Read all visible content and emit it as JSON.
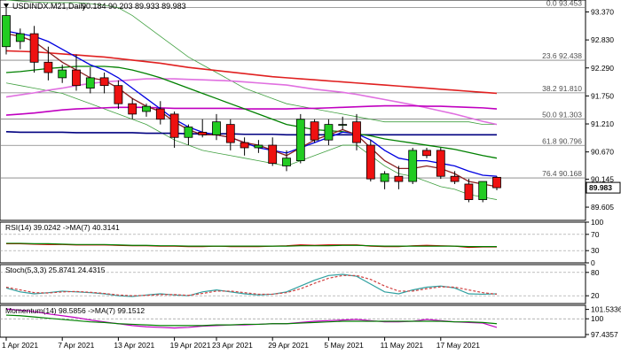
{
  "header": {
    "symbol_label": "USDINDX.M21,Daily",
    "ohlc_label": "90.184 90.203 89.933 89.983"
  },
  "chart_data": {
    "type": "candlestick",
    "price_axis": {
      "ticks": [
        "93.370",
        "92.830",
        "92.290",
        "91.750",
        "91.210",
        "90.670",
        "90.145",
        "89.605"
      ],
      "range": [
        89.35,
        93.6
      ],
      "current_price": "89.983"
    },
    "fibonacci_levels": [
      {
        "label": "0.0 93.453",
        "value": 93.453
      },
      {
        "label": "23.6 92.438",
        "value": 92.438
      },
      {
        "label": "38.2 91.810",
        "value": 91.81
      },
      {
        "label": "50.0 91.303",
        "value": 91.303
      },
      {
        "label": "61.8 90.796",
        "value": 90.796
      },
      {
        "label": "76.4 90.168",
        "value": 90.168
      }
    ],
    "candles": [
      {
        "o": 92.7,
        "h": 93.45,
        "l": 92.55,
        "c": 93.3
      },
      {
        "o": 92.8,
        "h": 93.05,
        "l": 92.65,
        "c": 92.95
      },
      {
        "o": 92.95,
        "h": 93.1,
        "l": 92.2,
        "c": 92.4
      },
      {
        "o": 92.4,
        "h": 92.7,
        "l": 92.05,
        "c": 92.2
      },
      {
        "o": 92.1,
        "h": 92.35,
        "l": 92.0,
        "c": 92.25
      },
      {
        "o": 92.25,
        "h": 92.55,
        "l": 91.85,
        "c": 91.95
      },
      {
        "o": 91.9,
        "h": 92.3,
        "l": 91.8,
        "c": 92.1
      },
      {
        "o": 92.1,
        "h": 92.2,
        "l": 91.8,
        "c": 91.95
      },
      {
        "o": 91.95,
        "h": 92.05,
        "l": 91.5,
        "c": 91.6
      },
      {
        "o": 91.6,
        "h": 91.7,
        "l": 91.3,
        "c": 91.4
      },
      {
        "o": 91.45,
        "h": 91.6,
        "l": 91.35,
        "c": 91.55
      },
      {
        "o": 91.5,
        "h": 91.65,
        "l": 91.2,
        "c": 91.3
      },
      {
        "o": 91.4,
        "h": 91.45,
        "l": 90.75,
        "c": 90.95
      },
      {
        "o": 90.95,
        "h": 91.2,
        "l": 90.8,
        "c": 91.15
      },
      {
        "o": 91.05,
        "h": 91.3,
        "l": 90.95,
        "c": 91.0
      },
      {
        "o": 91.0,
        "h": 91.4,
        "l": 90.9,
        "c": 91.25
      },
      {
        "o": 91.2,
        "h": 91.3,
        "l": 90.7,
        "c": 90.85
      },
      {
        "o": 90.85,
        "h": 90.95,
        "l": 90.6,
        "c": 90.75
      },
      {
        "o": 90.75,
        "h": 90.9,
        "l": 90.65,
        "c": 90.8
      },
      {
        "o": 90.8,
        "h": 90.95,
        "l": 90.4,
        "c": 90.45
      },
      {
        "o": 90.4,
        "h": 90.7,
        "l": 90.3,
        "c": 90.55
      },
      {
        "o": 90.5,
        "h": 91.4,
        "l": 90.45,
        "c": 91.3
      },
      {
        "o": 91.25,
        "h": 91.3,
        "l": 90.85,
        "c": 90.9
      },
      {
        "o": 90.9,
        "h": 91.3,
        "l": 90.8,
        "c": 91.2
      },
      {
        "o": 91.2,
        "h": 91.35,
        "l": 91.1,
        "c": 91.2
      },
      {
        "o": 91.25,
        "h": 91.4,
        "l": 90.7,
        "c": 90.85
      },
      {
        "o": 90.8,
        "h": 90.9,
        "l": 90.1,
        "c": 90.15
      },
      {
        "o": 90.1,
        "h": 90.3,
        "l": 89.95,
        "c": 90.25
      },
      {
        "o": 90.2,
        "h": 90.4,
        "l": 89.95,
        "c": 90.1
      },
      {
        "o": 90.1,
        "h": 90.75,
        "l": 90.05,
        "c": 90.7
      },
      {
        "o": 90.7,
        "h": 90.75,
        "l": 90.55,
        "c": 90.6
      },
      {
        "o": 90.7,
        "h": 90.75,
        "l": 90.15,
        "c": 90.2
      },
      {
        "o": 90.2,
        "h": 90.3,
        "l": 90.05,
        "c": 90.1
      },
      {
        "o": 90.05,
        "h": 90.15,
        "l": 89.7,
        "c": 89.75
      },
      {
        "o": 89.75,
        "h": 90.1,
        "l": 89.7,
        "c": 90.1
      },
      {
        "o": 90.18,
        "h": 90.2,
        "l": 89.93,
        "c": 89.98
      }
    ],
    "moving_averages": [
      {
        "color": "#e02020",
        "values": [
          92.62,
          92.61,
          92.6,
          92.58,
          92.56,
          92.54,
          92.52,
          92.5,
          92.47,
          92.44,
          92.41,
          92.38,
          92.34,
          92.3,
          92.27,
          92.24,
          92.21,
          92.18,
          92.15,
          92.12,
          92.1,
          92.08,
          92.06,
          92.04,
          92.02,
          92.0,
          91.98,
          91.96,
          91.94,
          91.92,
          91.9,
          91.88,
          91.86,
          91.84,
          91.82,
          91.8
        ]
      },
      {
        "color": "#e070e0",
        "values": [
          91.73,
          91.77,
          91.81,
          91.86,
          91.9,
          91.95,
          91.99,
          92.02,
          92.04,
          92.06,
          92.08,
          92.08,
          92.08,
          92.07,
          92.06,
          92.05,
          92.04,
          92.02,
          92.0,
          91.98,
          91.96,
          91.92,
          91.88,
          91.85,
          91.82,
          91.78,
          91.73,
          91.68,
          91.63,
          91.58,
          91.52,
          91.46,
          91.4,
          91.33,
          91.26,
          91.2
        ]
      },
      {
        "color": "#c000c0",
        "values": [
          91.38,
          91.4,
          91.42,
          91.45,
          91.48,
          91.5,
          91.51,
          91.52,
          91.53,
          91.53,
          91.53,
          91.52,
          91.51,
          91.51,
          91.51,
          91.51,
          91.51,
          91.5,
          91.5,
          91.5,
          91.5,
          91.51,
          91.51,
          91.52,
          91.53,
          91.54,
          91.55,
          91.56,
          91.56,
          91.56,
          91.55,
          91.55,
          91.54,
          91.53,
          91.52,
          91.5
        ]
      },
      {
        "color": "#000080",
        "values": [
          91.06,
          91.05,
          91.05,
          91.05,
          91.05,
          91.04,
          91.04,
          91.04,
          91.04,
          91.04,
          91.03,
          91.03,
          91.03,
          91.02,
          91.02,
          91.02,
          91.02,
          91.01,
          91.01,
          91.01,
          91.0,
          91.0,
          91.0,
          91.0,
          91.0,
          91.0,
          91.0,
          91.0,
          91.0,
          91.0,
          91.0,
          91.0,
          91.0,
          91.0,
          91.0,
          91.0
        ]
      },
      {
        "color": "#008000",
        "values": [
          92.2,
          92.22,
          92.25,
          92.28,
          92.3,
          92.32,
          92.32,
          92.32,
          92.3,
          92.25,
          92.18,
          92.1,
          92.0,
          91.9,
          91.8,
          91.7,
          91.6,
          91.5,
          91.4,
          91.3,
          91.2,
          91.15,
          91.1,
          91.08,
          91.06,
          91.02,
          90.98,
          90.92,
          90.88,
          90.84,
          90.8,
          90.76,
          90.72,
          90.66,
          90.6,
          90.55
        ]
      },
      {
        "color": "#0000e0",
        "values": [
          93.0,
          92.95,
          92.9,
          92.8,
          92.65,
          92.5,
          92.35,
          92.25,
          92.1,
          91.9,
          91.7,
          91.5,
          91.3,
          91.15,
          91.05,
          91.0,
          90.95,
          90.85,
          90.75,
          90.7,
          90.65,
          90.75,
          90.85,
          90.95,
          91.05,
          91.02,
          90.9,
          90.7,
          90.55,
          90.5,
          90.5,
          90.45,
          90.4,
          90.3,
          90.22,
          90.2
        ]
      },
      {
        "color": "#8b2020",
        "values": [
          92.95,
          92.9,
          92.8,
          92.6,
          92.4,
          92.25,
          92.1,
          92.05,
          91.9,
          91.7,
          91.55,
          91.45,
          91.25,
          91.1,
          91.0,
          91.0,
          90.95,
          90.85,
          90.8,
          90.7,
          90.6,
          90.75,
          90.9,
          91.0,
          91.1,
          91.0,
          90.75,
          90.5,
          90.35,
          90.35,
          90.4,
          90.35,
          90.25,
          90.1,
          90.05,
          90.0
        ]
      }
    ],
    "bollinger_bands": {
      "color": "#40a040",
      "upper": [
        93.6,
        93.58,
        93.56,
        93.55,
        93.55,
        93.55,
        93.53,
        93.5,
        93.45,
        93.3,
        93.1,
        92.9,
        92.7,
        92.5,
        92.35,
        92.2,
        92.05,
        91.9,
        91.8,
        91.7,
        91.6,
        91.55,
        91.5,
        91.45,
        91.4,
        91.35,
        91.3,
        91.25,
        91.25,
        91.25,
        91.25,
        91.25,
        91.25,
        91.25,
        91.2,
        91.2
      ],
      "lower": [
        92.0,
        91.95,
        91.9,
        91.85,
        91.8,
        91.7,
        91.6,
        91.5,
        91.4,
        91.3,
        91.2,
        91.05,
        90.9,
        90.8,
        90.7,
        90.65,
        90.6,
        90.55,
        90.5,
        90.45,
        90.4,
        90.5,
        90.6,
        90.7,
        90.8,
        90.8,
        90.6,
        90.4,
        90.25,
        90.2,
        90.1,
        90.0,
        89.95,
        89.85,
        89.8,
        89.75
      ]
    },
    "x_axis": {
      "labels": [
        "1 Apr 2021",
        "7 Apr 2021",
        "13 Apr 2021",
        "19 Apr 2021",
        "23 Apr 2021",
        "29 Apr 2021",
        "5 May 2021",
        "11 May 2021",
        "17 May 2021"
      ],
      "label_indices": [
        0,
        4,
        8,
        12,
        15,
        19,
        23,
        27,
        31
      ]
    },
    "indicators": [
      {
        "name": "rsi",
        "label": "RSI(14) 39.0242  ->MA(7) 40.3141",
        "range": [
          0,
          100
        ],
        "ticks": [
          "100",
          "70",
          "30",
          "0"
        ],
        "levels": [
          70,
          30
        ],
        "series": [
          {
            "color": "#cc0000",
            "values": [
              47,
              47,
              46,
              45,
              45,
              44,
              44,
              44,
              43,
              42,
              42,
              41,
              41,
              40,
              40,
              41,
              40,
              40,
              40,
              41,
              42,
              44,
              43,
              44,
              44,
              44,
              41,
              40,
              40,
              42,
              43,
              42,
              41,
              38,
              39,
              39
            ]
          },
          {
            "color": "#008000",
            "values": [
              48,
              48,
              47,
              47,
              46,
              45,
              45,
              45,
              44,
              43,
              43,
              42,
              42,
              41,
              41,
              41,
              41,
              41,
              41,
              41,
              41,
              42,
              42,
              42,
              43,
              43,
              42,
              41,
              41,
              41,
              41,
              41,
              41,
              40,
              40,
              40
            ]
          }
        ]
      },
      {
        "name": "stochastic",
        "label": "Stoch(5,3,3) 25.8741 24.4315",
        "range": [
          0,
          100
        ],
        "ticks": [
          "80",
          "20"
        ],
        "levels": [
          80,
          20
        ],
        "series": [
          {
            "color": "#30a0a0",
            "values": [
              40,
              30,
              25,
              28,
              32,
              30,
              28,
              25,
              20,
              18,
              22,
              25,
              22,
              20,
              30,
              35,
              30,
              25,
              22,
              24,
              30,
              45,
              60,
              72,
              75,
              70,
              50,
              30,
              25,
              35,
              42,
              45,
              40,
              25,
              24,
              25
            ]
          },
          {
            "color": "#d04040",
            "dashed": true,
            "values": [
              42,
              35,
              28,
              27,
              30,
              31,
              29,
              26,
              22,
              20,
              21,
              23,
              23,
              21,
              26,
              32,
              32,
              28,
              24,
              24,
              28,
              38,
              52,
              65,
              72,
              72,
              62,
              45,
              32,
              32,
              38,
              43,
              42,
              35,
              28,
              24
            ]
          }
        ]
      },
      {
        "name": "momentum",
        "label": "Momentum(14) 98.5856  ->MA(7) 99.1512",
        "range": [
          97.0,
          102.2
        ],
        "ticks": [
          "101.5336",
          "100",
          "97.4357"
        ],
        "levels": [
          100
        ],
        "series": [
          {
            "color": "#c000c0",
            "values": [
              101.6,
              101.4,
              101.2,
              100.8,
              100.5,
              100.2,
              99.8,
              99.5,
              99.2,
              98.9,
              98.7,
              98.6,
              98.5,
              98.6,
              98.8,
              98.9,
              99.0,
              99.0,
              99.1,
              99.2,
              99.2,
              99.4,
              99.6,
              99.7,
              99.8,
              99.9,
              99.7,
              99.5,
              99.5,
              99.6,
              99.9,
              99.7,
              99.5,
              99.4,
              99.3,
              98.6
            ]
          },
          {
            "color": "#008000",
            "values": [
              100.6,
              100.5,
              100.3,
              100.1,
              99.9,
              99.7,
              99.5,
              99.4,
              99.2,
              99.1,
              99.0,
              98.9,
              98.9,
              98.9,
              98.9,
              99.0,
              99.0,
              99.1,
              99.1,
              99.2,
              99.2,
              99.3,
              99.4,
              99.5,
              99.6,
              99.6,
              99.6,
              99.6,
              99.6,
              99.6,
              99.6,
              99.6,
              99.5,
              99.5,
              99.4,
              99.2
            ]
          }
        ]
      }
    ]
  }
}
